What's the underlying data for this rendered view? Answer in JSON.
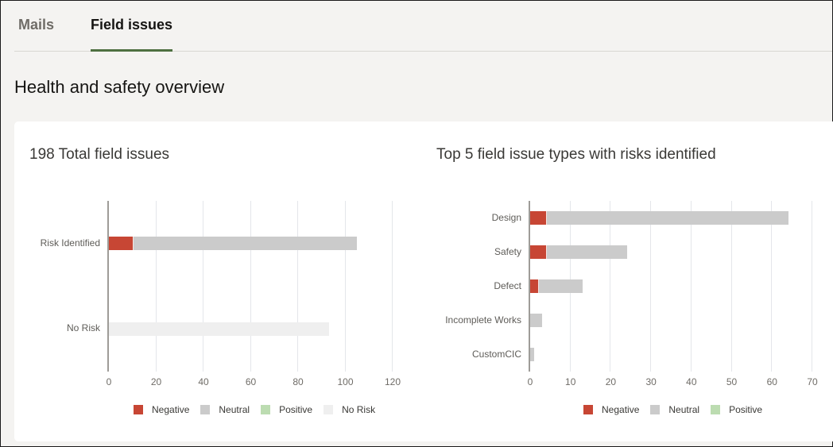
{
  "tabs": [
    {
      "label": "Mails",
      "active": false
    },
    {
      "label": "Field issues",
      "active": true
    }
  ],
  "page_title": "Health and safety overview",
  "colors": {
    "negative": "#c74634",
    "neutral": "#cbcbcb",
    "positive": "#bcdcb1",
    "no_risk": "#efefef",
    "active_tab_underline": "#4e7041"
  },
  "chart_data": [
    {
      "type": "bar",
      "orientation": "horizontal",
      "stacked": true,
      "title": "198 Total field issues",
      "categories": [
        "Risk Identified",
        "No Risk"
      ],
      "series": [
        {
          "name": "Negative",
          "values": [
            10,
            0
          ]
        },
        {
          "name": "Neutral",
          "values": [
            95,
            0
          ]
        },
        {
          "name": "Positive",
          "values": [
            0,
            0
          ]
        },
        {
          "name": "No Risk",
          "values": [
            0,
            93
          ]
        }
      ],
      "xlim": [
        0,
        120
      ],
      "xticks": [
        "0",
        "20",
        "40",
        "60",
        "80",
        "100",
        "120"
      ],
      "grid": true,
      "legend": [
        "Negative",
        "Neutral",
        "Positive",
        "No Risk"
      ],
      "legend_position": "bottom"
    },
    {
      "type": "bar",
      "orientation": "horizontal",
      "stacked": true,
      "title": "Top 5 field issue types with risks identified",
      "categories": [
        "Design",
        "Safety",
        "Defect",
        "Incomplete Works",
        "CustomCIC"
      ],
      "series": [
        {
          "name": "Negative",
          "values": [
            4,
            4,
            2,
            0,
            0
          ]
        },
        {
          "name": "Neutral",
          "values": [
            60,
            20,
            11,
            3,
            1
          ]
        },
        {
          "name": "Positive",
          "values": [
            0,
            0,
            0,
            0,
            0
          ]
        }
      ],
      "xlim": [
        0,
        70
      ],
      "xticks": [
        "0",
        "10",
        "20",
        "30",
        "40",
        "50",
        "60",
        "70"
      ],
      "grid": true,
      "legend": [
        "Negative",
        "Neutral",
        "Positive"
      ],
      "legend_position": "bottom"
    }
  ]
}
